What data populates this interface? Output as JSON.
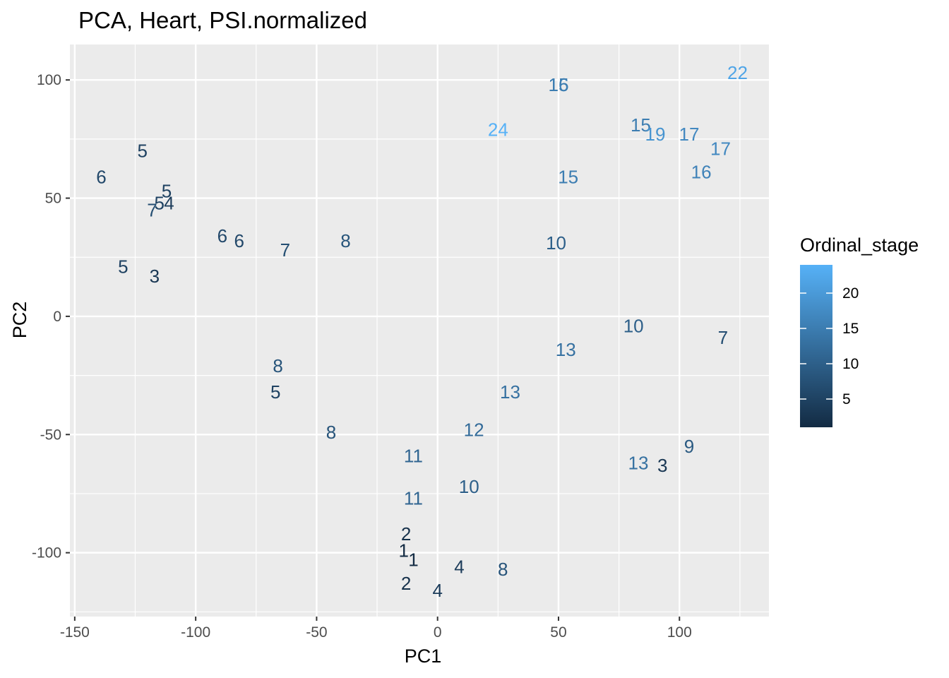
{
  "chart_data": {
    "type": "scatter",
    "title": "PCA, Heart, PSI.normalized",
    "xlabel": "PC1",
    "ylabel": "PC2",
    "xlim": [
      -152,
      137
    ],
    "ylim": [
      -127,
      115
    ],
    "x_ticks": [
      -150,
      -100,
      -50,
      0,
      50,
      100
    ],
    "y_ticks": [
      -100,
      -50,
      0,
      50,
      100
    ],
    "grid": true,
    "marker": "text label showing Ordinal_stage",
    "color_legend": {
      "title": "Ordinal_stage",
      "range": [
        1,
        24
      ],
      "ticks": [
        5,
        10,
        15,
        20
      ],
      "color_low": "#132b43",
      "color_high": "#56b1f7",
      "placement": "right"
    },
    "points": [
      {
        "x": -139,
        "y": 59,
        "stage": 6
      },
      {
        "x": -122,
        "y": 70,
        "stage": 5
      },
      {
        "x": -112,
        "y": 53,
        "stage": 5
      },
      {
        "x": -115,
        "y": 48,
        "stage": 5
      },
      {
        "x": -111,
        "y": 48,
        "stage": 4
      },
      {
        "x": -118,
        "y": 45,
        "stage": 7
      },
      {
        "x": -89,
        "y": 34,
        "stage": 6
      },
      {
        "x": -82,
        "y": 32,
        "stage": 6
      },
      {
        "x": -63,
        "y": 28,
        "stage": 7
      },
      {
        "x": -38,
        "y": 32,
        "stage": 8
      },
      {
        "x": -130,
        "y": 21,
        "stage": 5
      },
      {
        "x": -117,
        "y": 17,
        "stage": 3
      },
      {
        "x": -66,
        "y": -21,
        "stage": 8
      },
      {
        "x": -67,
        "y": -32,
        "stage": 5
      },
      {
        "x": -44,
        "y": -49,
        "stage": 8
      },
      {
        "x": -10,
        "y": -59,
        "stage": 11
      },
      {
        "x": -10,
        "y": -77,
        "stage": 11
      },
      {
        "x": 15,
        "y": -48,
        "stage": 12
      },
      {
        "x": 30,
        "y": -32,
        "stage": 13
      },
      {
        "x": 13,
        "y": -72,
        "stage": 10
      },
      {
        "x": -13,
        "y": -92,
        "stage": 2
      },
      {
        "x": -14,
        "y": -99,
        "stage": 1
      },
      {
        "x": -10,
        "y": -103,
        "stage": 1
      },
      {
        "x": -13,
        "y": -113,
        "stage": 2
      },
      {
        "x": 9,
        "y": -106,
        "stage": 4
      },
      {
        "x": 0,
        "y": -116,
        "stage": 4
      },
      {
        "x": 27,
        "y": -107,
        "stage": 8
      },
      {
        "x": 49,
        "y": 31,
        "stage": 10
      },
      {
        "x": 53,
        "y": -14,
        "stage": 13
      },
      {
        "x": 81,
        "y": -4,
        "stage": 10
      },
      {
        "x": 118,
        "y": -9,
        "stage": 7
      },
      {
        "x": 83,
        "y": -62,
        "stage": 13
      },
      {
        "x": 93,
        "y": -63,
        "stage": 3
      },
      {
        "x": 104,
        "y": -55,
        "stage": 9
      },
      {
        "x": 50,
        "y": 98,
        "stage": 16
      },
      {
        "x": 50,
        "y": 98,
        "stage": 15
      },
      {
        "x": 25,
        "y": 79,
        "stage": 24
      },
      {
        "x": 54,
        "y": 59,
        "stage": 15
      },
      {
        "x": 84,
        "y": 81,
        "stage": 15
      },
      {
        "x": 90,
        "y": 77,
        "stage": 19
      },
      {
        "x": 104,
        "y": 77,
        "stage": 17
      },
      {
        "x": 117,
        "y": 71,
        "stage": 17
      },
      {
        "x": 109,
        "y": 61,
        "stage": 16
      },
      {
        "x": 124,
        "y": 103,
        "stage": 22
      }
    ]
  }
}
